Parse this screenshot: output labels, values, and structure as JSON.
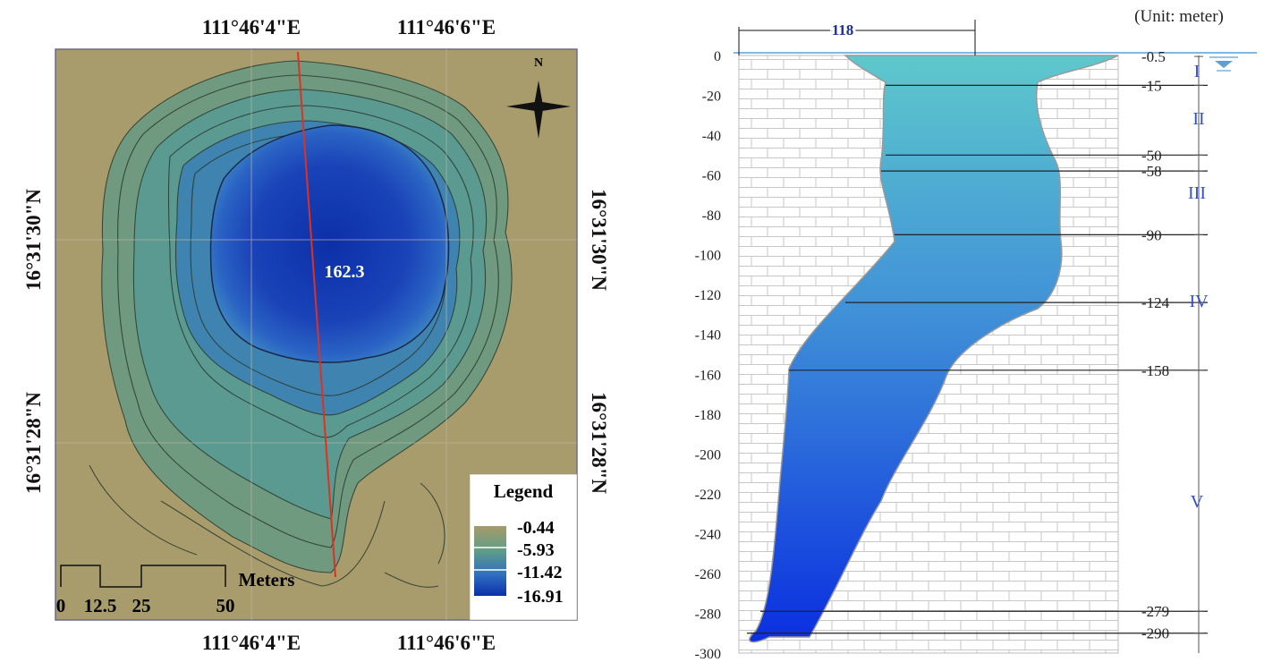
{
  "map": {
    "top_lon_labels": [
      "111°46'4\"E",
      "111°46'6\"E"
    ],
    "bottom_lon_labels": [
      "111°46'4\"E",
      "111°46'6\"E"
    ],
    "left_lat_labels": [
      "16°31'30\"N",
      "16°31'28\"N"
    ],
    "right_lat_labels": [
      "16°31'30\"N",
      "16°31'28\"N"
    ],
    "profile_length_label": "162.3",
    "north_label": "N",
    "legend": {
      "title": "Legend",
      "values": [
        "-0.44",
        "-5.93",
        "-11.42",
        "-16.91"
      ],
      "colors": [
        "#a69a6a",
        "#5f9e86",
        "#2f6ec0",
        "#0c2fa8"
      ]
    },
    "scale_bar": {
      "unit": "Meters",
      "labels": [
        "0",
        "12.5",
        "25",
        "50"
      ]
    }
  },
  "profile": {
    "unit_label": "(Unit: meter)",
    "width_label": "118",
    "y_ticks": [
      "0",
      "-20",
      "-40",
      "-60",
      "-80",
      "-100",
      "-120",
      "-140",
      "-160",
      "-180",
      "-200",
      "-220",
      "-240",
      "-260",
      "-280",
      "-300"
    ],
    "layer_depths": [
      "-0.5",
      "-15",
      "-50",
      "-58",
      "-90",
      "-124",
      "-158",
      "-279",
      "-290"
    ],
    "zones": [
      "I",
      "II",
      "III",
      "IV",
      "V"
    ],
    "colors": {
      "water_top": "#5ec8cc",
      "water_bottom": "#0a2fe0",
      "brick": "#cfcfcf"
    }
  }
}
